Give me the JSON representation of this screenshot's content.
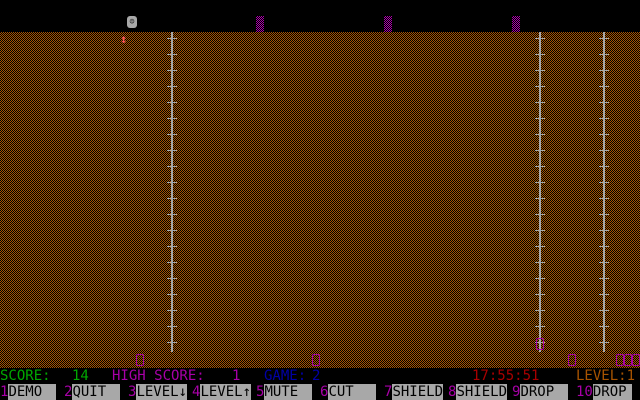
{
  "status": {
    "score_label": "SCORE:",
    "score": "14",
    "high_label": "HIGH SCORE:",
    "high": "1",
    "game_label": "GAME:",
    "game": "2",
    "clock": "17:55:51",
    "level": "LEVEL:1"
  },
  "keys": [
    {
      "n": "1",
      "l": "DEMO"
    },
    {
      "n": "2",
      "l": "QUIT"
    },
    {
      "n": "3",
      "l": "LEVEL↓"
    },
    {
      "n": "4",
      "l": "LEVEL↑"
    },
    {
      "n": "5",
      "l": "MUTE"
    },
    {
      "n": "6",
      "l": "CUT"
    },
    {
      "n": "7",
      "l": "SHIELD"
    },
    {
      "n": "8",
      "l": "SHIELD"
    },
    {
      "n": "9",
      "l": "DROP"
    },
    {
      "n": "10",
      "l": "DROP"
    }
  ],
  "colors": {
    "score": "#00a800",
    "high": "#a800a8",
    "game": "#0000a8",
    "clock": "#a80000",
    "level": "#a85400",
    "pattern": "#a85400"
  },
  "icons": {
    "player": "smiley-face-icon",
    "arrow": "up-down-arrow-icon",
    "enemy": "face-icon"
  }
}
